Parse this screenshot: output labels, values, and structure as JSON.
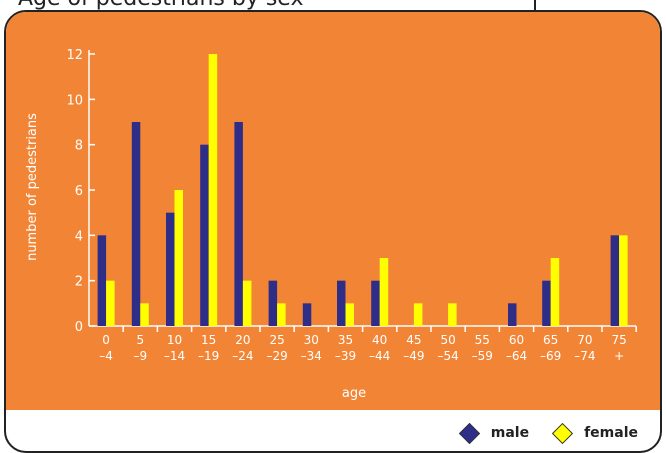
{
  "page": {
    "title_fragment": "Age of pedestrians by sex"
  },
  "colors": {
    "background": "#f28535",
    "male": "#2e2e88",
    "female": "#ffff00",
    "axis": "#ffffff",
    "frame": "#222222"
  },
  "chart_data": {
    "type": "bar",
    "categories": [
      [
        "0",
        "–4"
      ],
      [
        "5",
        "–9"
      ],
      [
        "10",
        "–14"
      ],
      [
        "15",
        "–19"
      ],
      [
        "20",
        "–24"
      ],
      [
        "25",
        "–29"
      ],
      [
        "30",
        "–34"
      ],
      [
        "35",
        "–39"
      ],
      [
        "40",
        "–44"
      ],
      [
        "45",
        "–49"
      ],
      [
        "50",
        "–54"
      ],
      [
        "55",
        "–59"
      ],
      [
        "60",
        "–64"
      ],
      [
        "65",
        "–69"
      ],
      [
        "70",
        "–74"
      ],
      [
        "75",
        "+"
      ]
    ],
    "series": [
      {
        "name": "male",
        "values": [
          4,
          9,
          5,
          8,
          9,
          2,
          1,
          2,
          2,
          0,
          0,
          0,
          1,
          2,
          0,
          4
        ]
      },
      {
        "name": "female",
        "values": [
          2,
          1,
          6,
          12,
          2,
          1,
          0,
          1,
          3,
          1,
          1,
          0,
          0,
          3,
          0,
          4
        ]
      }
    ],
    "xlabel": "age",
    "ylabel": "number of pedestrians",
    "ylim": [
      0,
      12
    ],
    "yticks": [
      0,
      2,
      4,
      6,
      8,
      10,
      12
    ],
    "grid": false,
    "legend_position": "bottom-right"
  }
}
